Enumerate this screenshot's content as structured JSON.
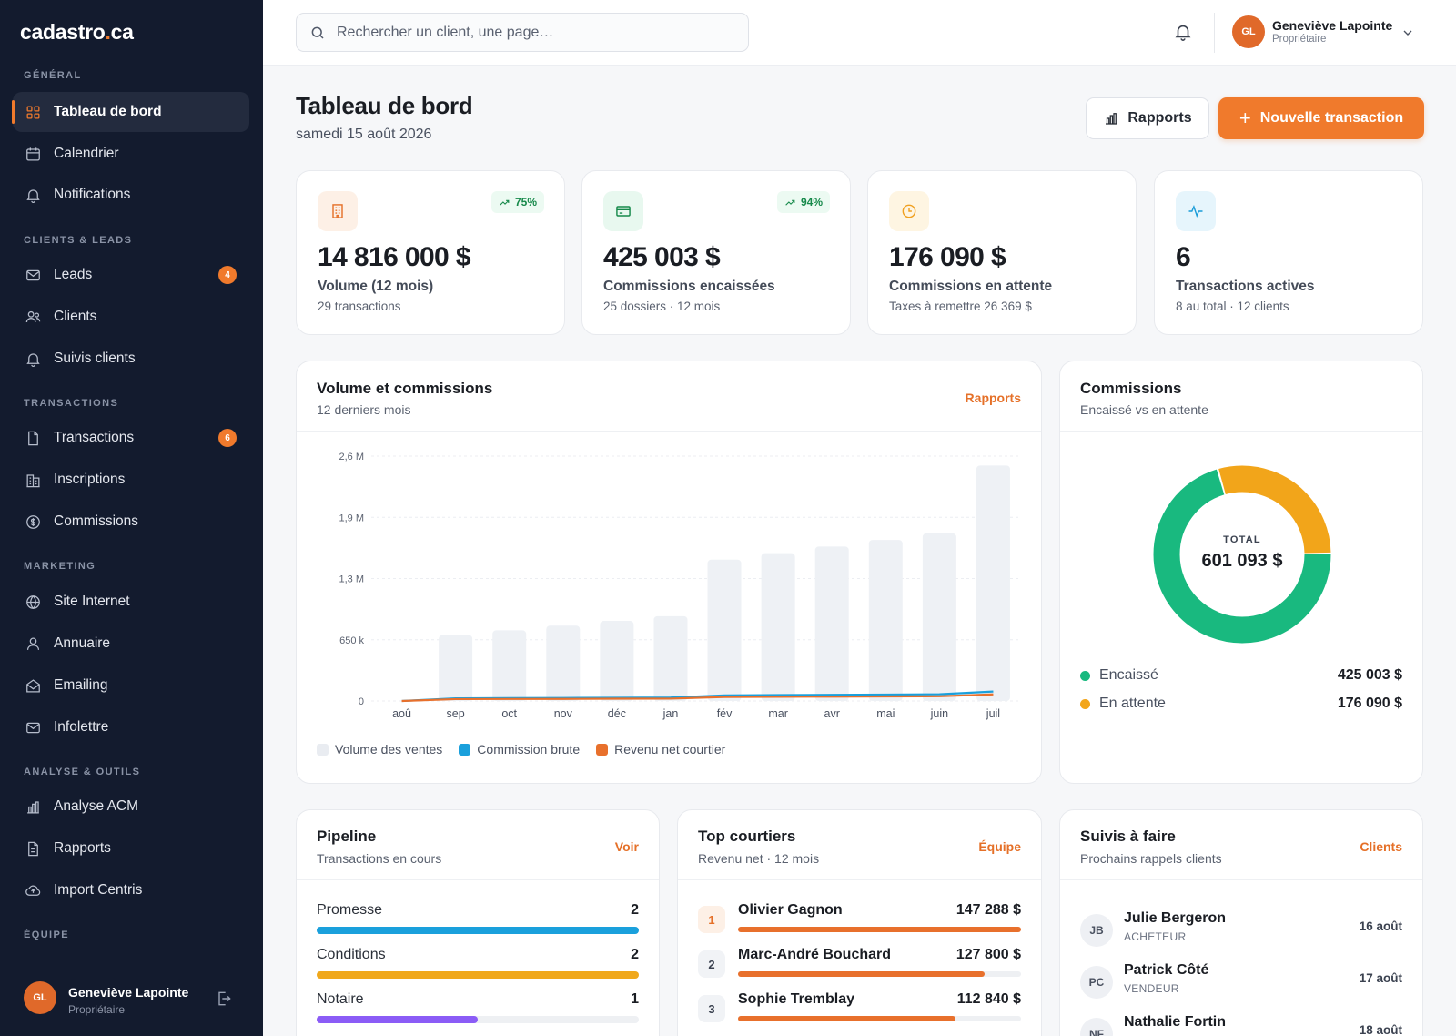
{
  "app": {
    "logo_main": "cadastro",
    "logo_dot": ".",
    "logo_tld": "ca"
  },
  "sidebar": {
    "sections": {
      "general": "GÉNÉRAL",
      "clients": "CLIENTS & LEADS",
      "transactions": "TRANSACTIONS",
      "marketing": "MARKETING",
      "analyse": "ANALYSE & OUTILS",
      "equipe": "ÉQUIPE"
    },
    "items": {
      "tableau": "Tableau de bord",
      "calendrier": "Calendrier",
      "notifications": "Notifications",
      "leads": "Leads",
      "leads_badge": "4",
      "clients": "Clients",
      "suivis": "Suivis clients",
      "transactions": "Transactions",
      "transactions_badge": "6",
      "inscriptions": "Inscriptions",
      "commissions": "Commissions",
      "site": "Site Internet",
      "annuaire": "Annuaire",
      "emailing": "Emailing",
      "infolettre": "Infolettre",
      "acm": "Analyse ACM",
      "rapports": "Rapports",
      "centris": "Import Centris"
    },
    "user": {
      "initials": "GL",
      "name": "Geneviève Lapointe",
      "role": "Propriétaire"
    }
  },
  "topbar": {
    "search_placeholder": "Rechercher un client, une page…",
    "user": {
      "initials": "GL",
      "name": "Geneviève Lapointe",
      "role": "Propriétaire"
    }
  },
  "header": {
    "title": "Tableau de bord",
    "date": "samedi 15 août 2026",
    "btn_rapports": "Rapports",
    "btn_new": "Nouvelle transaction"
  },
  "kpis": [
    {
      "value": "14 816 000 $",
      "label": "Volume (12 mois)",
      "sub": "29 transactions",
      "trend": "75%",
      "icon": "building-icon",
      "color": "#e57028"
    },
    {
      "value": "425 003 $",
      "label": "Commissions encaissées",
      "sub": "25 dossiers · 12 mois",
      "trend": "94%",
      "icon": "card-icon",
      "color": "#16894a"
    },
    {
      "value": "176 090 $",
      "label": "Commissions en attente",
      "sub": "Taxes à remettre 26 369 $",
      "icon": "clock-icon",
      "color": "#f0a020"
    },
    {
      "value": "6",
      "label": "Transactions actives",
      "sub": "8 au total · 12 clients",
      "icon": "activity-icon",
      "color": "#1a9cd8"
    }
  ],
  "volume_card": {
    "title": "Volume et commissions",
    "sub": "12 derniers mois",
    "link": "Rapports",
    "legend": [
      "Volume des ventes",
      "Commission brute",
      "Revenu net courtier"
    ]
  },
  "commissions_card": {
    "title": "Commissions",
    "sub": "Encaissé vs en attente",
    "total_label": "TOTAL",
    "total_value": "601 093 $",
    "rows": [
      {
        "label": "Encaissé",
        "value": "425 003 $"
      },
      {
        "label": "En attente",
        "value": "176 090 $"
      }
    ]
  },
  "pipeline": {
    "title": "Pipeline",
    "sub": "Transactions en cours",
    "link": "Voir",
    "rows": [
      {
        "label": "Promesse",
        "count": "2",
        "ratio": 1.0,
        "color": "#1aa0dc"
      },
      {
        "label": "Conditions",
        "count": "2",
        "ratio": 1.0,
        "color": "#f0a81c"
      },
      {
        "label": "Notaire",
        "count": "1",
        "ratio": 0.5,
        "color": "#8b5cf6"
      }
    ]
  },
  "top": {
    "title": "Top courtiers",
    "sub": "Revenu net · 12 mois",
    "link": "Équipe",
    "rows": [
      {
        "rank": "1",
        "name": "Olivier Gagnon",
        "value": "147 288 $",
        "ratio": 1.0
      },
      {
        "rank": "2",
        "name": "Marc-André Bouchard",
        "value": "127 800 $",
        "ratio": 0.87
      },
      {
        "rank": "3",
        "name": "Sophie Tremblay",
        "value": "112 840 $",
        "ratio": 0.77
      }
    ]
  },
  "follow": {
    "title": "Suivis à faire",
    "sub": "Prochains rappels clients",
    "link": "Clients",
    "rows": [
      {
        "initials": "JB",
        "name": "Julie Bergeron",
        "role": "ACHETEUR",
        "date": "16 août"
      },
      {
        "initials": "PC",
        "name": "Patrick Côté",
        "role": "VENDEUR",
        "date": "17 août"
      },
      {
        "initials": "NF",
        "name": "Nathalie Fortin",
        "role": "",
        "date": "18 août"
      }
    ]
  },
  "chart_data": [
    {
      "type": "bar",
      "categories": [
        "aoû",
        "sep",
        "oct",
        "nov",
        "déc",
        "jan",
        "fév",
        "mar",
        "avr",
        "mai",
        "juin",
        "juil"
      ],
      "yticks": [
        "0",
        "650 k",
        "1,3 M",
        "1,9 M",
        "2,6 M"
      ],
      "ylim": [
        0,
        2600000
      ],
      "grid": true,
      "legend": "bottom-left",
      "series": [
        {
          "name": "Volume des ventes",
          "type": "bar",
          "color": "#eef1f5",
          "values": [
            0,
            700000,
            750000,
            800000,
            850000,
            900000,
            1500000,
            1570000,
            1640000,
            1710000,
            1780000,
            2500000
          ]
        },
        {
          "name": "Commission brute",
          "type": "line",
          "color": "#1aa0dc",
          "values": [
            0,
            28000,
            30000,
            32000,
            34000,
            36000,
            60000,
            63000,
            66000,
            68000,
            71000,
            100000
          ]
        },
        {
          "name": "Revenu net courtier",
          "type": "line",
          "color": "#e8702c",
          "values": [
            0,
            20000,
            21000,
            22000,
            24000,
            25000,
            42000,
            44000,
            46000,
            48000,
            50000,
            70000
          ]
        }
      ]
    },
    {
      "type": "pie",
      "categories": [
        "Encaissé",
        "En attente"
      ],
      "values": [
        425003,
        176090
      ],
      "colors": [
        "#19b97f",
        "#f2a51a"
      ]
    }
  ]
}
